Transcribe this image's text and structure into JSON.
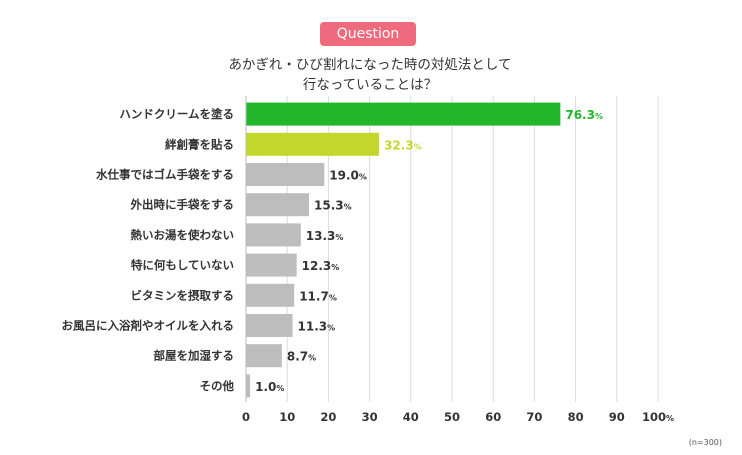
{
  "badge": "Question",
  "title_lines": [
    "あかぎれ・ひび割れになった時の対処法として",
    "行なっていることは？"
  ],
  "note": "(n=300)",
  "colors": {
    "highlight_1": "#22b62b",
    "highlight_2": "#c2d72a",
    "default_bar": "#bdbdbd",
    "grid": "#dcdcdc",
    "badge": "#ef6a7c"
  },
  "chart_data": {
    "type": "bar",
    "orientation": "horizontal",
    "categories": [
      "ハンドクリームを塗る",
      "絆創膏を貼る",
      "水仕事ではゴム手袋をする",
      "外出時に手袋をする",
      "熱いお湯を使わない",
      "特に何もしていない",
      "ビタミンを摂取する",
      "お風呂に入浴剤やオイルを入れる",
      "部屋を加湿する",
      "その他"
    ],
    "values": [
      76.3,
      32.3,
      19.0,
      15.3,
      13.3,
      12.3,
      11.7,
      11.3,
      8.7,
      1.0
    ],
    "value_labels": [
      "76.3",
      "32.3",
      "19.0",
      "15.3",
      "13.3",
      "12.3",
      "11.7",
      "11.3",
      "8.7",
      "1.0"
    ],
    "unit": "%",
    "xlim": [
      0,
      100
    ],
    "x_ticks": [
      "0",
      "10",
      "20",
      "30",
      "40",
      "50",
      "60",
      "70",
      "80",
      "90",
      "100"
    ],
    "x_tick_suffix_last": "%",
    "grid": "vertical"
  }
}
